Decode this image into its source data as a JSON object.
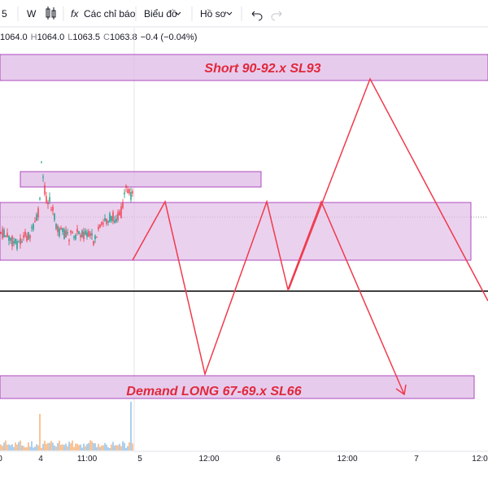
{
  "toolbar": {
    "interval": "W",
    "indicators": "Các chỉ báo",
    "chart": "Biểu đồ",
    "profile": "Hồ sơ"
  },
  "legend": [
    "1064.0",
    "H",
    "1064.0",
    "L",
    "1063.5",
    "C",
    "1063.8",
    "−0.4 (−0.04%)"
  ],
  "annotations": {
    "short": "Short 90-92.x SL93",
    "demand": "Demand LONG 67-69.x SL66"
  },
  "x_axis": [
    "0",
    "4",
    "11:00",
    "5",
    "12:00",
    "6",
    "12:00",
    "7",
    "12:0"
  ]
}
